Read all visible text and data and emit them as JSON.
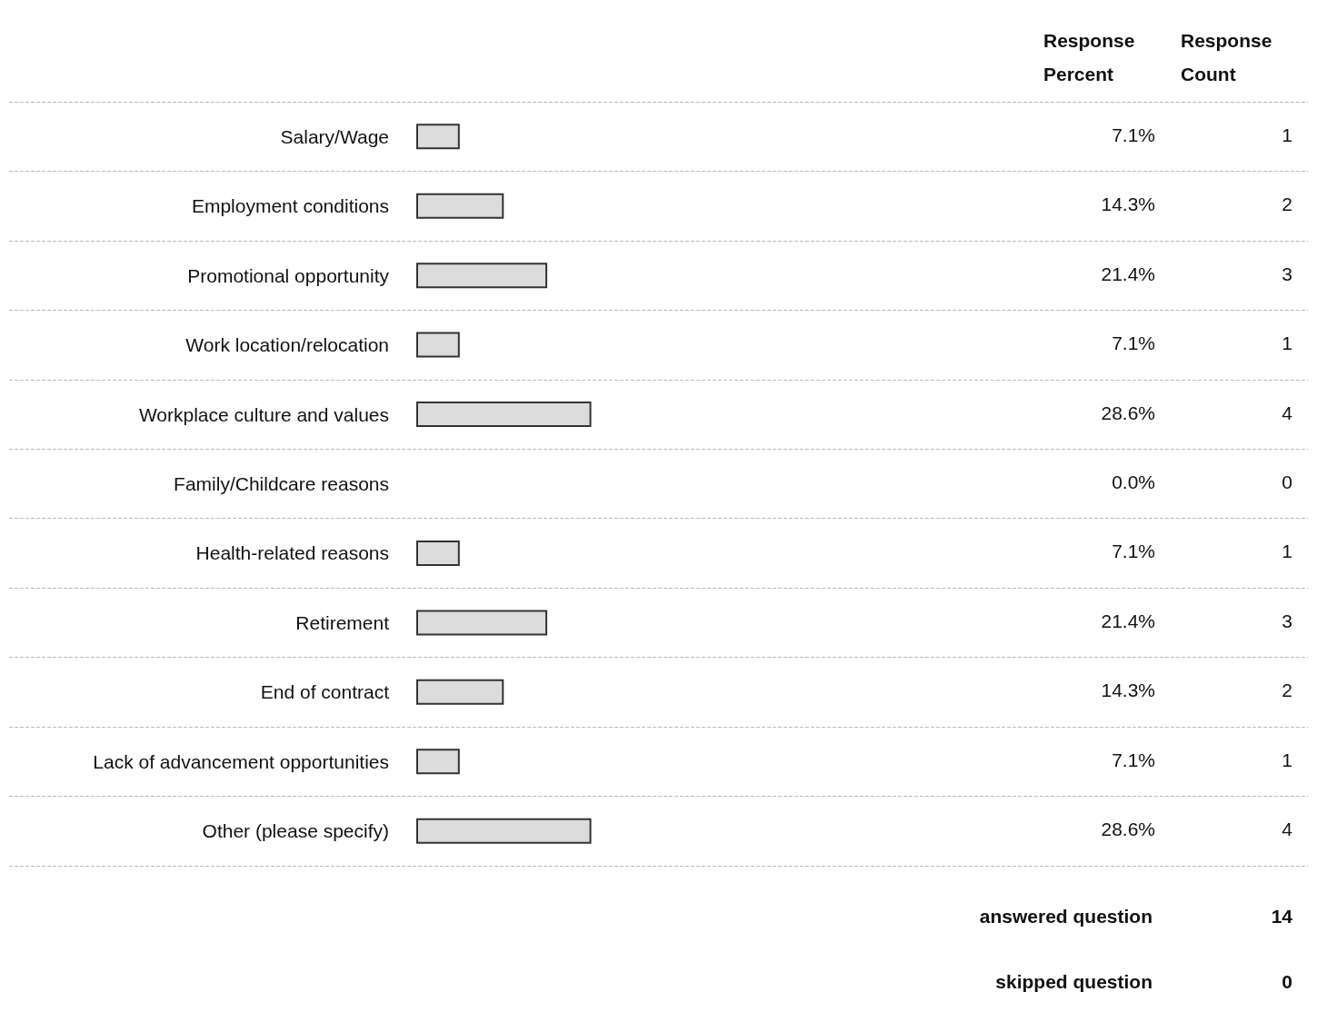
{
  "chart_data": {
    "type": "bar",
    "orientation": "horizontal",
    "categories": [
      "Salary/Wage",
      "Employment conditions",
      "Promotional opportunity",
      "Work location/relocation",
      "Workplace culture and values",
      "Family/Childcare reasons",
      "Health-related reasons",
      "Retirement",
      "End of contract",
      "Lack of advancement opportunities",
      "Other (please specify)"
    ],
    "series": [
      {
        "name": "Response Percent",
        "color": "#dcdcdc",
        "values": [
          7.1,
          14.3,
          21.4,
          7.1,
          28.6,
          0.0,
          7.1,
          21.4,
          14.3,
          7.1,
          28.6
        ],
        "value_labels": [
          "7.1%",
          "14.3%",
          "21.4%",
          "7.1%",
          "28.6%",
          "0.0%",
          "7.1%",
          "21.4%",
          "14.3%",
          "7.1%",
          "28.6%"
        ]
      }
    ],
    "tick_labels": "y",
    "grid": "y",
    "annotations": [
      "Response Count",
      "1",
      "2",
      "3",
      "1",
      "4",
      "0",
      "1",
      "3",
      "2",
      "1",
      "4",
      "answered question",
      "14",
      "skipped question",
      "0"
    ]
  }
}
